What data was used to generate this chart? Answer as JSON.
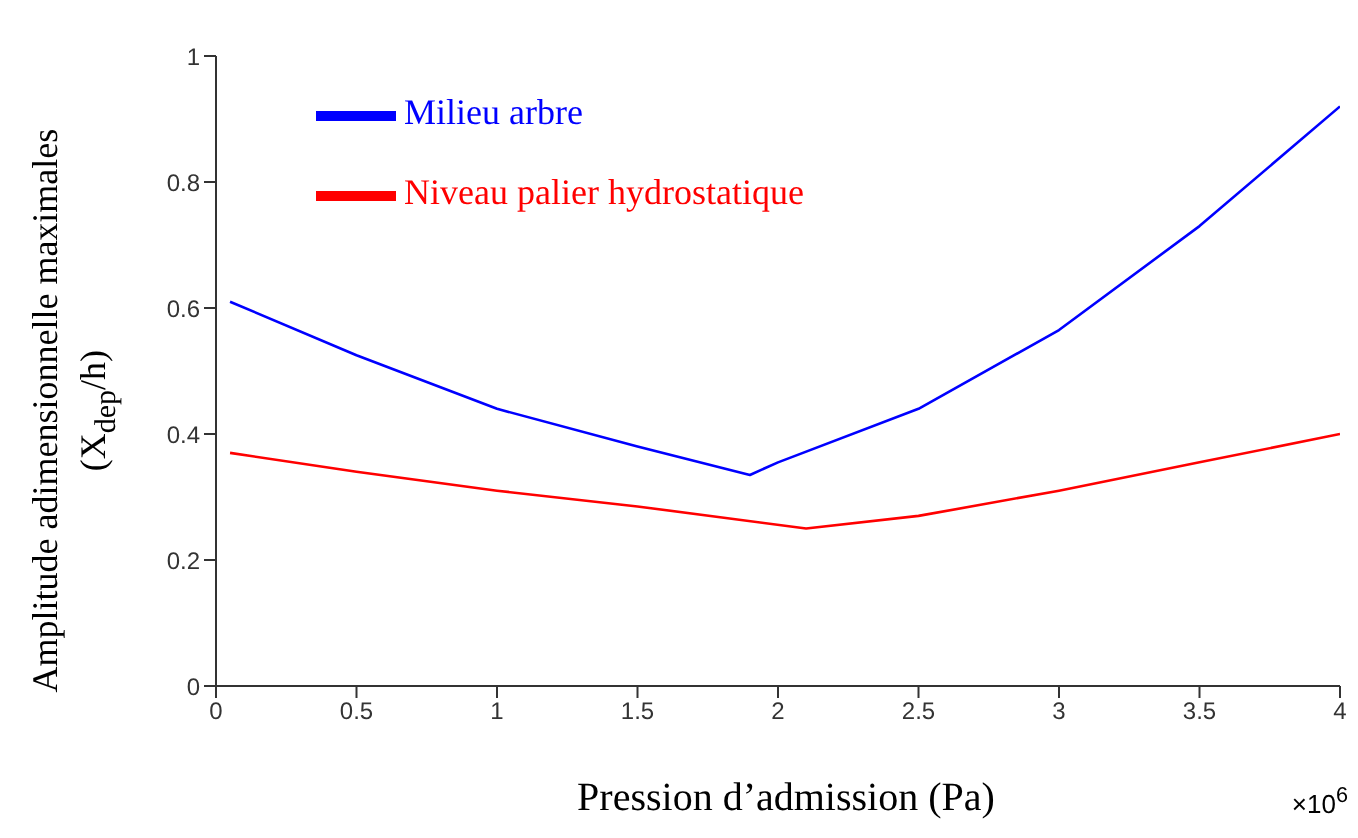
{
  "chart_data": {
    "type": "line",
    "xlabel": "Pression d’admission (Pa)",
    "ylabel": "Amplitude adimensionnelle maximales\n(X$_{dep}$/h)",
    "annotations": [
      "×10$^{6}$"
    ],
    "series": [
      {
        "name": "Milieu arbre",
        "color": "#0000ff",
        "x": [
          0.05,
          0.5,
          1,
          1.5,
          1.9,
          2,
          2.5,
          3,
          3.5,
          4
        ],
        "values": [
          0.61,
          0.525,
          0.44,
          0.38,
          0.335,
          0.355,
          0.44,
          0.565,
          0.73,
          0.92
        ]
      },
      {
        "name": "Niveau palier hydrostatique",
        "color": "#ff0000",
        "x": [
          0.05,
          0.5,
          1,
          1.5,
          2.1,
          2.5,
          3,
          3.5,
          4
        ],
        "values": [
          0.37,
          0.34,
          0.31,
          0.285,
          0.25,
          0.27,
          0.31,
          0.355,
          0.4
        ]
      }
    ],
    "xlim": [
      0,
      4
    ],
    "xticks": [
      0,
      0.5,
      1,
      1.5,
      2,
      2.5,
      3,
      3.5,
      4
    ],
    "ylim": [
      0,
      1
    ],
    "yticks": [
      0,
      0.2,
      0.4,
      0.6,
      0.8,
      1
    ],
    "legend": "top left",
    "grid": false,
    "marker": "none",
    "line_style": "solid"
  }
}
